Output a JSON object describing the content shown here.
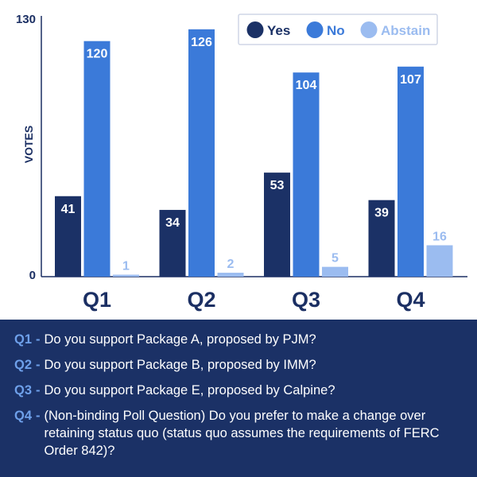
{
  "chart_data": {
    "type": "bar",
    "categories": [
      "Q1",
      "Q2",
      "Q3",
      "Q4"
    ],
    "series": [
      {
        "name": "Yes",
        "values": [
          41,
          34,
          53,
          39
        ],
        "color": "#1b3166",
        "label_color": "#ffffff"
      },
      {
        "name": "No",
        "values": [
          120,
          126,
          104,
          107
        ],
        "color": "#3b7ad9",
        "label_color": "#ffffff"
      },
      {
        "name": "Abstain",
        "values": [
          1,
          2,
          5,
          16
        ],
        "color": "#9bbcf0",
        "label_color": "#9bbcf0"
      }
    ],
    "title": "",
    "xlabel": "",
    "ylabel": "VOTES",
    "ylim": [
      0,
      130
    ],
    "yticks": [
      "0",
      "130"
    ],
    "legend": "top-right",
    "grid": false
  },
  "notes": [
    {
      "code": "Q1",
      "sep": "-",
      "text": "Do you support Package A, proposed by PJM?"
    },
    {
      "code": "Q2",
      "sep": "-",
      "text": "Do you support Package B, proposed by IMM?"
    },
    {
      "code": "Q3",
      "sep": "-",
      "text": "Do you support Package E, proposed by Calpine?"
    },
    {
      "code": "Q4",
      "sep": "-",
      "text": "(Non-binding Poll Question) Do you prefer to make a change over retaining status quo (status quo assumes the requirements of FERC Order 842)?"
    }
  ],
  "colors": {
    "axis": "#1b2f63",
    "panel": "#1b3166",
    "accent": "#6ea0ea"
  }
}
